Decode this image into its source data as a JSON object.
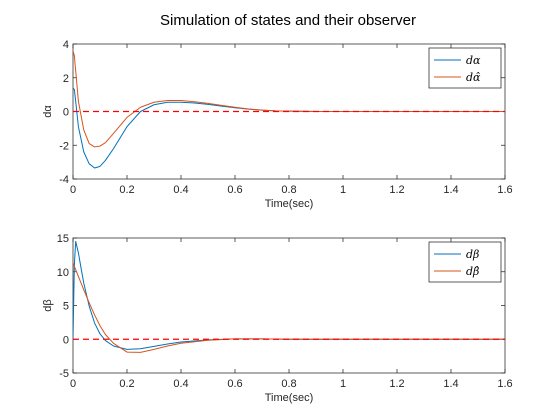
{
  "figure": {
    "title": "Simulation of states and their observer"
  },
  "colors": {
    "series1": "#0072BD",
    "series2": "#D95319",
    "reference": "#FF0000",
    "axis": "#262626"
  },
  "chart_data": [
    {
      "type": "line",
      "xlabel": "Time(sec)",
      "ylabel": "dα",
      "xlim": [
        0,
        1.6
      ],
      "ylim": [
        -4,
        4
      ],
      "xticks": [
        0,
        0.2,
        0.4,
        0.6,
        0.8,
        1,
        1.2,
        1.4,
        1.6
      ],
      "xtick_labels": [
        "0",
        "0.2",
        "0.4",
        "0.6",
        "0.8",
        "1",
        "1.2",
        "1.4",
        "1.6"
      ],
      "yticks": [
        -4,
        -2,
        0,
        2,
        4
      ],
      "ytick_labels": [
        "-4",
        "-2",
        "0",
        "2",
        "4"
      ],
      "grid": false,
      "legend_position": "top-right",
      "series": [
        {
          "name": "dα",
          "color": "#0072BD",
          "x": [
            0,
            0.005,
            0.01,
            0.02,
            0.04,
            0.06,
            0.08,
            0.1,
            0.12,
            0.15,
            0.2,
            0.25,
            0.3,
            0.35,
            0.4,
            0.45,
            0.5,
            0.55,
            0.6,
            0.65,
            0.7,
            0.75,
            0.8,
            0.9,
            1.0,
            1.2,
            1.4,
            1.6
          ],
          "y": [
            1.4,
            1.3,
            0.6,
            -0.9,
            -2.4,
            -3.1,
            -3.35,
            -3.25,
            -2.9,
            -2.2,
            -0.9,
            0.0,
            0.4,
            0.55,
            0.55,
            0.5,
            0.42,
            0.32,
            0.22,
            0.14,
            0.08,
            0.04,
            0.02,
            0.0,
            0.0,
            0.0,
            0.0,
            0.0
          ]
        },
        {
          "name": "dα̂",
          "color": "#D95319",
          "x": [
            0,
            0.005,
            0.01,
            0.02,
            0.04,
            0.06,
            0.08,
            0.1,
            0.12,
            0.15,
            0.2,
            0.25,
            0.3,
            0.35,
            0.4,
            0.45,
            0.5,
            0.55,
            0.6,
            0.65,
            0.7,
            0.75,
            0.8,
            0.9,
            1.0,
            1.2,
            1.4,
            1.6
          ],
          "y": [
            3.6,
            3.3,
            2.4,
            0.6,
            -1.1,
            -1.9,
            -2.1,
            -2.05,
            -1.85,
            -1.3,
            -0.35,
            0.25,
            0.55,
            0.65,
            0.65,
            0.58,
            0.48,
            0.36,
            0.25,
            0.15,
            0.08,
            0.04,
            0.02,
            0.0,
            0.0,
            0.0,
            0.0,
            0.0
          ]
        },
        {
          "name": "",
          "style": "dashed",
          "color": "#FF0000",
          "x": [
            0,
            1.6
          ],
          "y": [
            0,
            0
          ]
        }
      ]
    },
    {
      "type": "line",
      "xlabel": "Time(sec)",
      "ylabel": "dβ",
      "xlim": [
        0,
        1.6
      ],
      "ylim": [
        -5,
        15
      ],
      "xticks": [
        0,
        0.2,
        0.4,
        0.6,
        0.8,
        1,
        1.2,
        1.4,
        1.6
      ],
      "xtick_labels": [
        "0",
        "0.2",
        "0.4",
        "0.6",
        "0.8",
        "1",
        "1.2",
        "1.4",
        "1.6"
      ],
      "yticks": [
        -5,
        0,
        5,
        10,
        15
      ],
      "ytick_labels": [
        "-5",
        "0",
        "5",
        "10",
        "15"
      ],
      "grid": false,
      "legend_position": "top-right",
      "series": [
        {
          "name": "dβ",
          "color": "#0072BD",
          "x": [
            0,
            0.005,
            0.01,
            0.02,
            0.03,
            0.04,
            0.06,
            0.08,
            0.1,
            0.12,
            0.15,
            0.2,
            0.25,
            0.3,
            0.35,
            0.4,
            0.5,
            0.6,
            0.7,
            0.8,
            1.0,
            1.2,
            1.4,
            1.6
          ],
          "y": [
            0.0,
            11.0,
            14.5,
            12.8,
            10.5,
            8.3,
            4.9,
            2.4,
            0.8,
            -0.2,
            -1.0,
            -1.5,
            -1.4,
            -1.05,
            -0.7,
            -0.4,
            -0.1,
            0.05,
            0.05,
            0.0,
            0.0,
            0.0,
            0.0,
            0.0
          ]
        },
        {
          "name": "dβ̂",
          "color": "#D95319",
          "x": [
            0,
            0.005,
            0.01,
            0.02,
            0.03,
            0.04,
            0.06,
            0.08,
            0.1,
            0.12,
            0.15,
            0.2,
            0.25,
            0.3,
            0.35,
            0.4,
            0.5,
            0.6,
            0.7,
            0.8,
            1.0,
            1.2,
            1.4,
            1.6
          ],
          "y": [
            11.3,
            10.8,
            10.3,
            9.3,
            8.3,
            7.3,
            5.4,
            3.6,
            2.0,
            0.7,
            -0.6,
            -1.9,
            -1.95,
            -1.5,
            -1.0,
            -0.6,
            -0.15,
            0.05,
            0.05,
            0.0,
            0.0,
            0.0,
            0.0,
            0.0
          ]
        },
        {
          "name": "",
          "style": "dashed",
          "color": "#FF0000",
          "x": [
            0,
            1.6
          ],
          "y": [
            0,
            0
          ]
        }
      ]
    }
  ]
}
